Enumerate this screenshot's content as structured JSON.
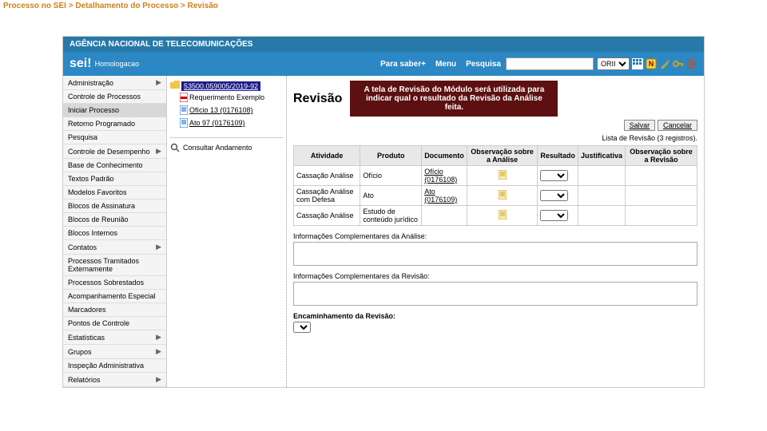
{
  "breadcrumb": "Processo no SEI > Detalhamento do Processo > Revisão",
  "agency": "AGÊNCIA NACIONAL DE TELECOMUNICAÇÕES",
  "logo": "sei!",
  "env": "Homologacao",
  "topbar": {
    "para_saber": "Para saber+",
    "menu": "Menu",
    "pesquisa": "Pesquisa",
    "unit": "ORII"
  },
  "menu": [
    {
      "label": "Administração",
      "arrow": true
    },
    {
      "label": "Controle de Processos"
    },
    {
      "label": "Iniciar Processo",
      "active": true
    },
    {
      "label": "Retorno Programado"
    },
    {
      "label": "Pesquisa"
    },
    {
      "label": "Controle de Desempenho",
      "arrow": true
    },
    {
      "label": "Base de Conhecimento"
    },
    {
      "label": "Textos Padrão"
    },
    {
      "label": "Modelos Favoritos"
    },
    {
      "label": "Blocos de Assinatura"
    },
    {
      "label": "Blocos de Reunião"
    },
    {
      "label": "Blocos Internos"
    },
    {
      "label": "Contatos",
      "arrow": true
    },
    {
      "label": "Processos Tramitados Externamente"
    },
    {
      "label": "Processos Sobrestados"
    },
    {
      "label": "Acompanhamento Especial"
    },
    {
      "label": "Marcadores"
    },
    {
      "label": "Pontos de Controle"
    },
    {
      "label": "Estatísticas",
      "arrow": true
    },
    {
      "label": "Grupos",
      "arrow": true
    },
    {
      "label": "Inspeção Administrativa"
    },
    {
      "label": "Relatórios",
      "arrow": true
    }
  ],
  "process_number": "53500.059005/2019-92",
  "tree": [
    {
      "label": "Requerimento Exemplo",
      "type": "pdf"
    },
    {
      "label": "Ofício 13 (0176108)",
      "type": "doc"
    },
    {
      "label": "Ato 97 (0176109)",
      "type": "doc"
    }
  ],
  "consult": "Consultar Andamento",
  "page_title": "Revisão",
  "callout": "A tela de Revisão do Módulo será utilizada para indicar qual o resultado da Revisão da Análise feita.",
  "buttons": {
    "save": "Salvar",
    "cancel": "Cancelar"
  },
  "list_info": "Lista de Revisão (3 registros).",
  "headers": {
    "atividade": "Atividade",
    "produto": "Produto",
    "documento": "Documento",
    "obs_analise": "Observação sobre a Análise",
    "resultado": "Resultado",
    "justificativa": "Justificativa",
    "obs_revisao": "Observação sobre a Revisão"
  },
  "rows": [
    {
      "atividade": "Cassação Análise",
      "produto": "Ofício",
      "doc_label": "Ofício",
      "doc_num": "(0176108)"
    },
    {
      "atividade": "Cassação Análise com Defesa",
      "produto": "Ato",
      "doc_label": "Ato",
      "doc_num": "(0176109)"
    },
    {
      "atividade": "Cassação Análise",
      "produto": "Estudo de conteúdo jurídico",
      "doc_label": "",
      "doc_num": ""
    }
  ],
  "sections": {
    "comp_analise": "Informações Complementares da Análise:",
    "comp_revisao": "Informações Complementares da Revisão:",
    "encaminhamento": "Encaminhamento da Revisão:"
  },
  "colors": {
    "header": "#2779aa",
    "topbar": "#2b88c4",
    "callout": "#5c1010",
    "proc": "#1a1a8a"
  }
}
